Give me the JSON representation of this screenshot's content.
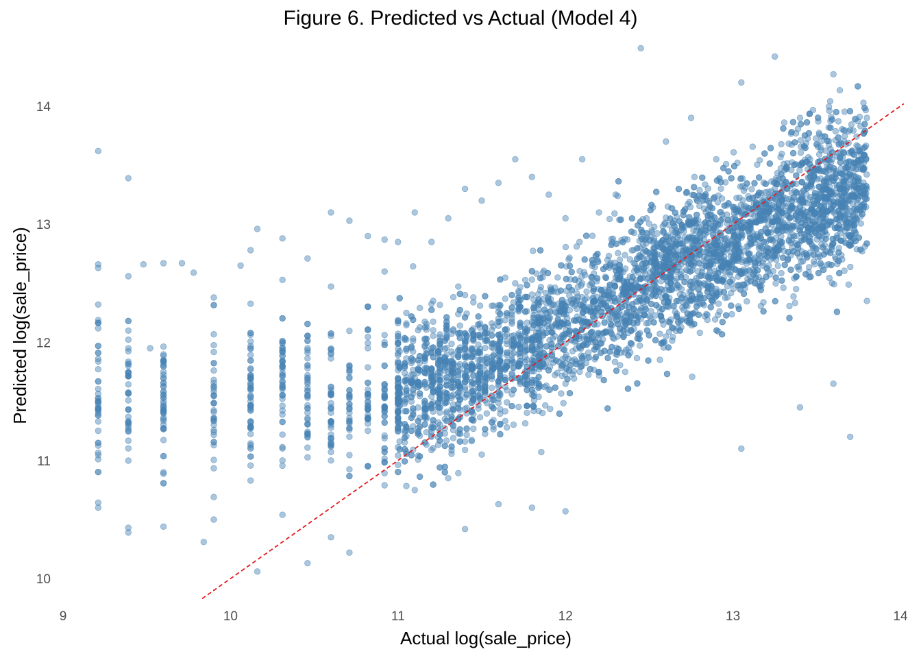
{
  "chart_data": {
    "type": "scatter",
    "title": "Figure 6. Predicted vs Actual (Model 4)",
    "xlabel": "Actual log(sale_price)",
    "ylabel": "Predicted log(sale_price)",
    "xlim": [
      9,
      14
    ],
    "ylim": [
      9.85,
      14.55
    ],
    "x_ticks": [
      "9",
      "10",
      "11",
      "12",
      "13",
      "14"
    ],
    "y_ticks": [
      "10",
      "11",
      "12",
      "13",
      "14"
    ],
    "grid": false,
    "legend": "none",
    "point_color": "#4682b4",
    "point_opacity": 0.45,
    "reference_line": {
      "slope": 1,
      "intercept": 0,
      "style": "dashed",
      "color": "#e41a1c",
      "x_range": [
        9.83,
        14.02
      ]
    },
    "series": [
      {
        "values_description_free": true,
        "points": [
          [
            9.21,
            13.62
          ],
          [
            9.21,
            12.66
          ],
          [
            9.21,
            12.63
          ],
          [
            9.21,
            12.32
          ],
          [
            9.21,
            11.86
          ],
          [
            9.21,
            11.5
          ],
          [
            9.21,
            11.33
          ],
          [
            9.21,
            11.01
          ],
          [
            9.21,
            10.6
          ],
          [
            9.39,
            13.39
          ],
          [
            9.39,
            12.56
          ],
          [
            9.39,
            10.43
          ],
          [
            9.39,
            10.39
          ],
          [
            9.48,
            12.66
          ],
          [
            9.52,
            11.95
          ],
          [
            9.6,
            12.67
          ],
          [
            9.6,
            11.7
          ],
          [
            9.6,
            11.5
          ],
          [
            9.6,
            11.4
          ],
          [
            9.6,
            10.9
          ],
          [
            9.6,
            10.44
          ],
          [
            9.71,
            12.67
          ],
          [
            9.78,
            12.59
          ],
          [
            9.84,
            10.31
          ],
          [
            9.9,
            12.38
          ],
          [
            9.9,
            11.55
          ],
          [
            9.9,
            10.69
          ],
          [
            9.9,
            10.5
          ],
          [
            10.06,
            12.65
          ],
          [
            10.12,
            12.78
          ],
          [
            10.12,
            11.5
          ],
          [
            10.12,
            10.83
          ],
          [
            10.16,
            12.96
          ],
          [
            10.16,
            10.06
          ],
          [
            10.31,
            12.88
          ],
          [
            10.31,
            11.95
          ],
          [
            10.31,
            11.0
          ],
          [
            10.31,
            10.54
          ],
          [
            10.46,
            12.71
          ],
          [
            10.46,
            11.65
          ],
          [
            10.46,
            10.13
          ],
          [
            10.6,
            13.1
          ],
          [
            10.6,
            11.9
          ],
          [
            10.6,
            11.0
          ],
          [
            10.6,
            10.35
          ],
          [
            10.71,
            13.03
          ],
          [
            10.71,
            11.45
          ],
          [
            10.71,
            10.22
          ],
          [
            10.82,
            12.9
          ],
          [
            10.82,
            12.3
          ],
          [
            10.82,
            11.6
          ],
          [
            10.82,
            10.95
          ],
          [
            10.92,
            12.6
          ],
          [
            10.92,
            11.55
          ],
          [
            11.0,
            12.85
          ],
          [
            11.0,
            12.05
          ],
          [
            11.0,
            11.25
          ],
          [
            11.1,
            13.1
          ],
          [
            11.1,
            11.7
          ],
          [
            11.1,
            10.75
          ],
          [
            11.2,
            12.85
          ],
          [
            11.2,
            11.95
          ],
          [
            11.2,
            11.2
          ],
          [
            11.3,
            13.05
          ],
          [
            11.3,
            11.75
          ],
          [
            11.3,
            10.85
          ],
          [
            11.4,
            13.3
          ],
          [
            11.4,
            12.4
          ],
          [
            11.4,
            11.6
          ],
          [
            11.4,
            10.42
          ],
          [
            11.5,
            13.2
          ],
          [
            11.5,
            11.85
          ],
          [
            11.5,
            11.05
          ],
          [
            11.6,
            13.35
          ],
          [
            11.6,
            12.2
          ],
          [
            11.6,
            11.55
          ],
          [
            11.6,
            10.63
          ],
          [
            11.7,
            13.55
          ],
          [
            11.7,
            12.5
          ],
          [
            11.7,
            11.7
          ],
          [
            11.8,
            13.4
          ],
          [
            11.8,
            12.6
          ],
          [
            11.8,
            11.85
          ],
          [
            11.8,
            10.6
          ],
          [
            11.9,
            13.25
          ],
          [
            11.9,
            12.35
          ],
          [
            11.9,
            11.6
          ],
          [
            12.0,
            13.05
          ],
          [
            12.0,
            12.3
          ],
          [
            12.0,
            11.65
          ],
          [
            12.0,
            10.57
          ],
          [
            12.1,
            13.55
          ],
          [
            12.1,
            12.5
          ],
          [
            12.1,
            11.8
          ],
          [
            12.2,
            13.1
          ],
          [
            12.2,
            12.45
          ],
          [
            12.2,
            11.75
          ],
          [
            12.3,
            13.25
          ],
          [
            12.3,
            12.55
          ],
          [
            12.3,
            11.9
          ],
          [
            12.45,
            14.49
          ],
          [
            12.45,
            12.9
          ],
          [
            12.45,
            12.2
          ],
          [
            12.6,
            13.7
          ],
          [
            12.6,
            12.75
          ],
          [
            12.6,
            12.05
          ],
          [
            12.75,
            13.9
          ],
          [
            12.75,
            13.0
          ],
          [
            12.75,
            12.35
          ],
          [
            12.9,
            13.55
          ],
          [
            12.9,
            12.95
          ],
          [
            12.9,
            12.4
          ],
          [
            13.05,
            14.2
          ],
          [
            13.05,
            13.1
          ],
          [
            13.05,
            12.6
          ],
          [
            13.05,
            11.1
          ],
          [
            13.25,
            14.42
          ],
          [
            13.25,
            13.3
          ],
          [
            13.25,
            12.8
          ],
          [
            13.4,
            13.9
          ],
          [
            13.4,
            13.2
          ],
          [
            13.4,
            12.95
          ],
          [
            13.4,
            11.45
          ],
          [
            13.6,
            14.27
          ],
          [
            13.6,
            13.45
          ],
          [
            13.6,
            13.1
          ],
          [
            13.6,
            11.65
          ],
          [
            13.7,
            13.8
          ],
          [
            13.7,
            13.2
          ],
          [
            13.7,
            11.2
          ],
          [
            13.8,
            13.9
          ],
          [
            13.8,
            13.3
          ],
          [
            13.8,
            12.35
          ]
        ]
      }
    ]
  }
}
